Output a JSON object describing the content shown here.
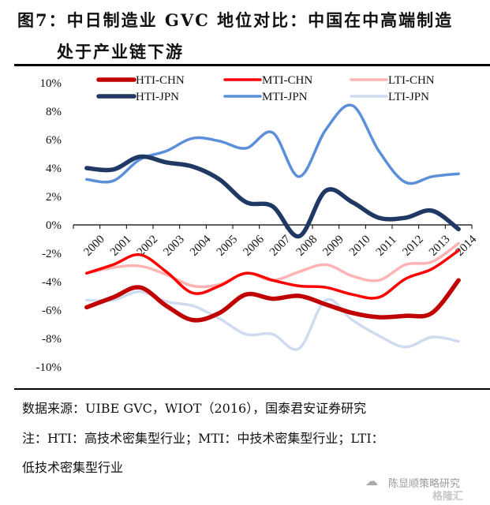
{
  "header": {
    "title_line1": "图7：中日制造业 GVC 地位对比：中国在中高端制造",
    "title_line2": "处于产业链下游"
  },
  "footer": {
    "source": "数据来源：UIBE GVC，WIOT（2016），国泰君安证券研究",
    "note_line1": "注：HTI：高技术密集型行业；MTI：中技术密集型行业；LTI：",
    "note_line2": "低技术密集型行业",
    "watermark": "陈显顺策略研究",
    "watermark_logo": "格隆汇"
  },
  "chart_data": {
    "type": "line",
    "title": "中日制造业 GVC 地位对比",
    "xlabel": "",
    "ylabel": "",
    "categories": [
      "2000",
      "2001",
      "2002",
      "2003",
      "2004",
      "2005",
      "2006",
      "2007",
      "2008",
      "2009",
      "2010",
      "2011",
      "2012",
      "2013",
      "2014"
    ],
    "ylim": [
      -10,
      10
    ],
    "yticks": [
      10,
      8,
      6,
      4,
      2,
      0,
      -2,
      -4,
      -6,
      -8,
      -10
    ],
    "ytick_labels": [
      "10%",
      "8%",
      "6%",
      "4%",
      "2%",
      "0%",
      "-2%",
      "-4%",
      "-6%",
      "-8%",
      "-10%"
    ],
    "value_unit": "%",
    "grid": false,
    "legend_position": "top",
    "series": [
      {
        "name": "HTI-CHN",
        "color": "#c00000",
        "width": "thick",
        "values": [
          -5.8,
          -5.1,
          -4.4,
          -5.7,
          -6.7,
          -6.2,
          -4.9,
          -5.2,
          -5.0,
          -5.6,
          -6.2,
          -6.5,
          -6.4,
          -6.2,
          -3.9
        ]
      },
      {
        "name": "MTI-CHN",
        "color": "#ff0000",
        "width": "medium",
        "values": [
          -3.4,
          -2.8,
          -2.1,
          -3.3,
          -4.8,
          -4.3,
          -3.4,
          -3.9,
          -4.3,
          -4.4,
          -4.9,
          -5.1,
          -3.8,
          -3.1,
          -1.8
        ]
      },
      {
        "name": "LTI-CHN",
        "color": "#ffb3b3",
        "width": "medium",
        "values": [
          -3.4,
          -3.0,
          -2.9,
          -3.5,
          -4.3,
          -4.2,
          -3.4,
          -3.9,
          -3.3,
          -2.8,
          -3.6,
          -3.9,
          -2.8,
          -2.6,
          -1.3
        ]
      },
      {
        "name": "HTI-JPN",
        "color": "#203864",
        "width": "thick",
        "values": [
          4.0,
          3.9,
          4.8,
          4.4,
          4.1,
          3.2,
          1.6,
          1.3,
          -0.8,
          2.4,
          1.6,
          0.5,
          0.5,
          1.0,
          -0.3
        ]
      },
      {
        "name": "MTI-JPN",
        "color": "#5b8fd9",
        "width": "medium",
        "values": [
          3.2,
          3.1,
          4.6,
          5.2,
          6.1,
          5.9,
          5.4,
          6.5,
          3.4,
          6.7,
          8.4,
          5.2,
          3.0,
          3.4,
          3.6
        ]
      },
      {
        "name": "LTI-JPN",
        "color": "#cfdcf0",
        "width": "medium",
        "values": [
          -5.3,
          -5.3,
          -4.7,
          -5.4,
          -5.7,
          -6.6,
          -7.7,
          -7.7,
          -8.7,
          -5.3,
          -6.7,
          -7.8,
          -8.6,
          -7.9,
          -8.2
        ]
      }
    ]
  }
}
